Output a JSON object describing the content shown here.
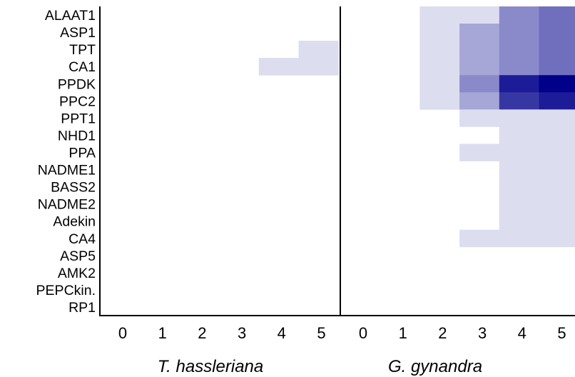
{
  "chart_data": {
    "type": "heatmap",
    "genes": [
      "ALAAT1",
      "ASP1",
      "TPT",
      "CA1",
      "PPDK",
      "PPC2",
      "PPT1",
      "NHD1",
      "PPA",
      "NADME1",
      "BASS2",
      "NADME2",
      "Adekin",
      "CA4",
      "ASP5",
      "AMK2",
      "PEPCkin.",
      "RP1"
    ],
    "x_ticks": [
      "0",
      "1",
      "2",
      "3",
      "4",
      "5"
    ],
    "panels": [
      {
        "name": "T. hassleriana",
        "values": [
          [
            0,
            0,
            0,
            0,
            0,
            0
          ],
          [
            0,
            0,
            0,
            0,
            0,
            0
          ],
          [
            0,
            0,
            0,
            0,
            0,
            1
          ],
          [
            0,
            0,
            0,
            0,
            1,
            1
          ],
          [
            0,
            0,
            0,
            0,
            0,
            0
          ],
          [
            0,
            0,
            0,
            0,
            0,
            0
          ],
          [
            0,
            0,
            0,
            0,
            0,
            0
          ],
          [
            0,
            0,
            0,
            0,
            0,
            0
          ],
          [
            0,
            0,
            0,
            0,
            0,
            0
          ],
          [
            0,
            0,
            0,
            0,
            0,
            0
          ],
          [
            0,
            0,
            0,
            0,
            0,
            0
          ],
          [
            0,
            0,
            0,
            0,
            0,
            0
          ],
          [
            0,
            0,
            0,
            0,
            0,
            0
          ],
          [
            0,
            0,
            0,
            0,
            0,
            0
          ],
          [
            0,
            0,
            0,
            0,
            0,
            0
          ],
          [
            0,
            0,
            0,
            0,
            0,
            0
          ],
          [
            0,
            0,
            0,
            0,
            0,
            0
          ],
          [
            0,
            0,
            0,
            0,
            0,
            0
          ]
        ]
      },
      {
        "name": "G. gynandra",
        "values": [
          [
            0,
            0,
            1,
            1,
            4,
            5
          ],
          [
            0,
            0,
            1,
            3,
            4,
            5
          ],
          [
            0,
            0,
            1,
            3,
            4,
            5
          ],
          [
            0,
            0,
            1,
            3,
            4,
            5
          ],
          [
            0,
            0,
            1,
            4,
            8,
            9
          ],
          [
            0,
            0,
            1,
            3,
            7,
            8
          ],
          [
            0,
            0,
            0,
            1,
            1,
            1
          ],
          [
            0,
            0,
            0,
            0,
            1,
            1
          ],
          [
            0,
            0,
            0,
            1,
            1,
            1
          ],
          [
            0,
            0,
            0,
            0,
            1,
            1
          ],
          [
            0,
            0,
            0,
            0,
            1,
            1
          ],
          [
            0,
            0,
            0,
            0,
            1,
            1
          ],
          [
            0,
            0,
            0,
            0,
            1,
            1
          ],
          [
            0,
            0,
            0,
            1,
            1,
            1
          ],
          [
            0,
            0,
            0,
            0,
            0,
            0
          ],
          [
            0,
            0,
            0,
            0,
            0,
            0
          ],
          [
            0,
            0,
            0,
            0,
            0,
            0
          ],
          [
            0,
            0,
            0,
            0,
            0,
            0
          ]
        ]
      }
    ],
    "value_range": [
      0,
      9
    ],
    "color_low": "#ffffff",
    "color_high": "#00008b",
    "grid": false,
    "legend": "none"
  }
}
